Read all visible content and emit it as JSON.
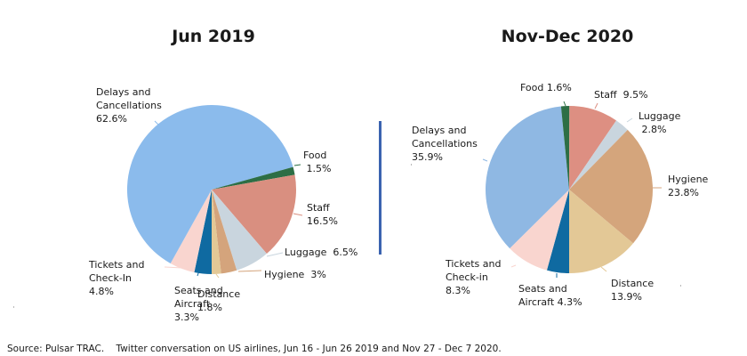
{
  "chart_data": [
    {
      "type": "pie",
      "title": "Jun 2019",
      "start_category": "Seats and Aircraft",
      "start_angle_clock": "6 o'clock",
      "direction": "clockwise",
      "slices": [
        {
          "name": "Seats and Aircraft",
          "label_lines": [
            "Seats and",
            "Aircraft",
            "3.3%"
          ],
          "value": 3.3,
          "color": "#0f6aa1"
        },
        {
          "name": "Tickets and Check-In",
          "label_lines": [
            "Tickets and",
            "Check-In",
            "4.8%"
          ],
          "value": 4.8,
          "color": "#f9d5cf"
        },
        {
          "name": "Delays and Cancellations",
          "label_lines": [
            "Delays and",
            "Cancellations",
            "62.6%"
          ],
          "value": 62.6,
          "color": "#8bbbec"
        },
        {
          "name": "Food",
          "label_lines": [
            "Food",
            " 1.5%"
          ],
          "value": 1.5,
          "color": "#2d6e45"
        },
        {
          "name": "Staff",
          "label_lines": [
            "Staff",
            "16.5%"
          ],
          "value": 16.5,
          "color": "#d98f80"
        },
        {
          "name": "Luggage",
          "label_lines": [
            "Luggage  6.5%"
          ],
          "value": 6.5,
          "color": "#c9d5de"
        },
        {
          "name": "Hygiene",
          "label_lines": [
            "Hygiene  3%"
          ],
          "value": 3,
          "color": "#d4a47c"
        },
        {
          "name": "Distance",
          "label_lines": [
            "Distance",
            "1.8%"
          ],
          "value": 1.8,
          "color": "#e3c896"
        }
      ]
    },
    {
      "type": "pie",
      "title": "Nov-Dec 2020",
      "start_category": "Seats and Aircraft",
      "start_angle_clock": "6 o'clock",
      "direction": "clockwise",
      "slices": [
        {
          "name": "Seats and Aircraft",
          "label_lines": [
            "Seats and",
            "Aircraft 4.3%"
          ],
          "value": 4.3,
          "color": "#0f6aa1"
        },
        {
          "name": "Tickets and Check-in",
          "label_lines": [
            "Tickets and",
            "Check-in",
            "8.3%"
          ],
          "value": 8.3,
          "color": "#f9d5cf"
        },
        {
          "name": "Delays and Cancellations",
          "label_lines": [
            "Delays and",
            "Cancellations",
            "35.9%"
          ],
          "value": 35.9,
          "color": "#8fb8e3"
        },
        {
          "name": "Food",
          "label_lines": [
            "Food 1.6%"
          ],
          "value": 1.6,
          "color": "#2d6e45"
        },
        {
          "name": "Staff",
          "label_lines": [
            "Staff  9.5%"
          ],
          "value": 9.5,
          "color": "#dd8f82"
        },
        {
          "name": "Luggage",
          "label_lines": [
            "Luggage",
            " 2.8%"
          ],
          "value": 2.8,
          "color": "#c9d5de"
        },
        {
          "name": "Hygiene",
          "label_lines": [
            "Hygiene",
            "23.8%"
          ],
          "value": 23.8,
          "color": "#d4a57c"
        },
        {
          "name": "Distance",
          "label_lines": [
            "Distance",
            "",
            "13.9%"
          ],
          "value": 13.9,
          "color": "#e3c896"
        }
      ]
    }
  ],
  "footer": {
    "source": "Source: Pulsar TRAC.    Twitter conversation on US airlines, Jun 16 - Jun 26 2019 and Nov 27 - Dec 7 2020."
  },
  "divider_color": "#3b63b0"
}
